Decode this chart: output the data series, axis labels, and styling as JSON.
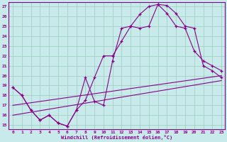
{
  "bg_color": "#c8eaea",
  "grid_color": "#99ccbb",
  "line_color": "#880088",
  "xlabel": "Windchill (Refroidissement éolien,°C)",
  "xmin": -0.5,
  "xmax": 23.4,
  "ymin": 14.55,
  "ymax": 27.45,
  "line1": {
    "x": [
      0,
      1,
      2,
      3,
      4,
      5,
      6,
      7,
      8,
      9,
      10,
      11,
      12,
      13,
      14,
      15,
      16,
      17,
      18,
      19,
      20,
      21,
      22,
      23
    ],
    "y": [
      18.8,
      18.0,
      16.5,
      15.5,
      16.0,
      15.2,
      14.9,
      16.5,
      19.8,
      17.4,
      17.0,
      21.5,
      24.8,
      25.0,
      24.8,
      25.0,
      27.2,
      27.1,
      26.3,
      25.0,
      24.8,
      21.0,
      20.5,
      19.8
    ]
  },
  "line2": {
    "x": [
      0,
      1,
      2,
      3,
      4,
      5,
      6,
      7,
      8,
      9,
      10,
      11,
      12,
      13,
      14,
      15,
      16,
      17,
      18,
      19,
      20,
      21,
      22,
      23
    ],
    "y": [
      18.8,
      18.0,
      16.5,
      15.5,
      16.0,
      15.2,
      14.9,
      16.5,
      17.5,
      19.8,
      22.0,
      22.0,
      23.5,
      25.0,
      26.2,
      27.0,
      27.2,
      26.3,
      25.0,
      24.8,
      22.5,
      21.5,
      21.0,
      20.5
    ]
  },
  "line3": {
    "x": [
      0,
      23
    ],
    "y": [
      17.0,
      20.0
    ]
  },
  "line4": {
    "x": [
      0,
      23
    ],
    "y": [
      16.0,
      19.5
    ]
  },
  "yticks": [
    15,
    16,
    17,
    18,
    19,
    20,
    21,
    22,
    23,
    24,
    25,
    26,
    27
  ],
  "xticks": [
    0,
    1,
    2,
    3,
    4,
    5,
    6,
    7,
    8,
    9,
    10,
    11,
    12,
    13,
    14,
    15,
    16,
    17,
    18,
    19,
    20,
    21,
    22,
    23
  ]
}
